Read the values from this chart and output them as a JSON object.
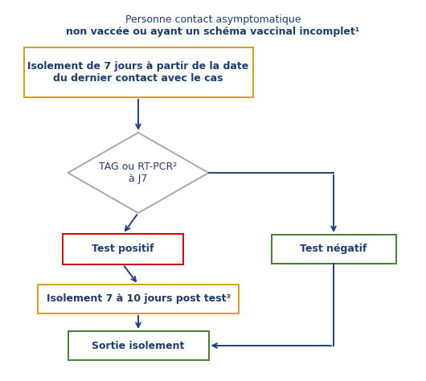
{
  "title_line1": "Personne contact asymptomatique",
  "title_line2": "non vaccée ou ayant un schéma vaccinal incomplet¹",
  "title_color": "#1f3c6e",
  "arrow_color": "#1f4080",
  "box1_text": "Isolement de 7 jours à partir de la date\ndu dernier contact avec le cas",
  "box1_border_color": "#d4a017",
  "box1_text_color": "#1f3c6e",
  "diamond_text": "TAG ou RT-PCR²\nà J7",
  "diamond_border_color": "#aaaaaa",
  "diamond_text_color": "#1f3c6e",
  "box2_text": "Test positif",
  "box2_border_color": "#cc0000",
  "box2_text_color": "#1f3c6e",
  "box3_text": "Isolement 7 à 10 jours post test³",
  "box3_border_color": "#d4a017",
  "box3_text_color": "#1f3c6e",
  "box4_text": "Sortie isolement",
  "box4_border_color": "#4a7c2f",
  "box4_text_color": "#1f3c6e",
  "box5_text": "Test négatif",
  "box5_border_color": "#4a7c2f",
  "box5_text_color": "#1f3c6e",
  "bg_color": "#ffffff",
  "figsize": [
    5.3,
    4.74
  ],
  "dpi": 100
}
